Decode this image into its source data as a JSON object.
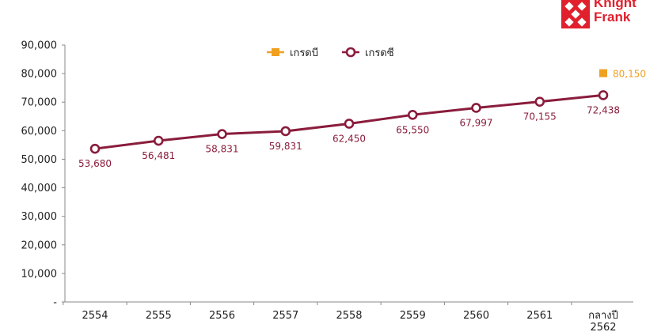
{
  "brand": {
    "line1": "Knight",
    "line2": "Frank",
    "color": "#e0202c"
  },
  "legend": {
    "position": "top-center",
    "items": [
      {
        "label": "เกรดบี",
        "color": "#f0a020",
        "marker": "square"
      },
      {
        "label": "เกรดซี",
        "color": "#8a1c3c",
        "marker": "circle"
      }
    ]
  },
  "chart_data": {
    "type": "line",
    "categories": [
      "2554",
      "2555",
      "2556",
      "2557",
      "2558",
      "2559",
      "2560",
      "2561",
      "กลางปี 2562"
    ],
    "series": [
      {
        "name": "เกรดบี",
        "color": "#f0a020",
        "marker": "square",
        "values": [
          null,
          null,
          null,
          null,
          null,
          null,
          null,
          null,
          80150
        ],
        "value_labels": [
          "",
          "",
          "",
          "",
          "",
          "",
          "",
          "",
          "80,150"
        ]
      },
      {
        "name": "เกรดซี",
        "color": "#8a1c3c",
        "marker": "circle",
        "values": [
          53680,
          56481,
          58831,
          59831,
          62450,
          65550,
          67997,
          70155,
          72438
        ],
        "value_labels": [
          "53,680",
          "56,481",
          "58,831",
          "59,831",
          "62,450",
          "65,550",
          "67,997",
          "70,155",
          "72,438"
        ]
      }
    ],
    "ylim": [
      0,
      90000
    ],
    "yticks": [
      0,
      10000,
      20000,
      30000,
      40000,
      50000,
      60000,
      70000,
      80000,
      90000
    ],
    "ytick_labels": [
      "-",
      "10,000",
      "20,000",
      "30,000",
      "40,000",
      "50,000",
      "60,000",
      "70,000",
      "80,000",
      "90,000"
    ],
    "xlabel": "",
    "ylabel": "",
    "title": "",
    "grid": false
  }
}
